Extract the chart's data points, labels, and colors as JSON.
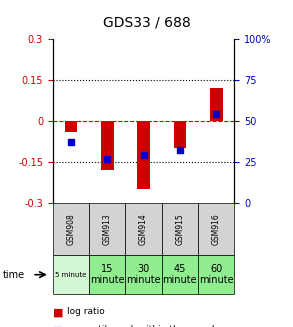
{
  "title": "GDS33 / 688",
  "samples": [
    "GSM908",
    "GSM913",
    "GSM914",
    "GSM915",
    "GSM916"
  ],
  "time_labels": [
    "5 minute",
    "15\nminute",
    "30\nminute",
    "45\nminute",
    "60\nminute"
  ],
  "time_bg_colors": [
    "#d4f7d4",
    "#90ee90",
    "#90ee90",
    "#90ee90",
    "#90ee90"
  ],
  "log_ratios": [
    -0.04,
    -0.18,
    -0.25,
    -0.1,
    0.12
  ],
  "percentile_ranks": [
    37,
    27,
    29,
    32,
    54
  ],
  "ylim": [
    -0.3,
    0.3
  ],
  "yticks_left": [
    -0.3,
    -0.15,
    0,
    0.15,
    0.3
  ],
  "yticks_right": [
    0,
    25,
    50,
    75,
    100
  ],
  "right_labels": [
    "0",
    "25",
    "50",
    "75",
    "100%"
  ],
  "left_color": "#cc0000",
  "right_color": "#0000cc",
  "bar_color": "#cc0000",
  "blue_color": "#0000cc",
  "hline_color": "#cc0000",
  "dotted_color": "#000000",
  "sample_bg": "#d3d3d3",
  "bar_width": 0.35,
  "time_fontsizes": [
    5,
    7,
    7,
    7,
    7
  ]
}
